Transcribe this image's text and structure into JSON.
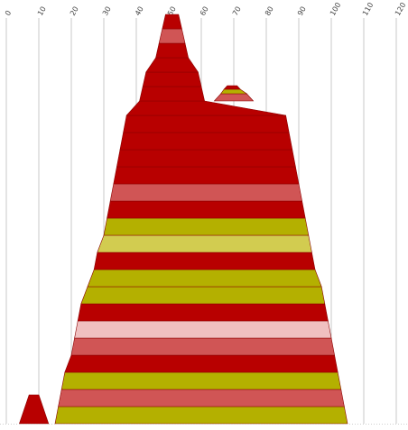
{
  "chart_data": {
    "type": "area",
    "title": "",
    "xlabel": "",
    "ylabel": "",
    "xlim": [
      0,
      120
    ],
    "x_ticks": [
      "0",
      "10",
      "20",
      "30",
      "40",
      "50",
      "60",
      "70",
      "80",
      "90",
      "100",
      "110",
      "120"
    ],
    "grid": "vertical",
    "legend": "none",
    "colors": {
      "dark_red": "#b80000",
      "salmon": "#d05555",
      "pink": "#f0c0c0",
      "olive": "#b4b000",
      "light_olive": "#d2cc50"
    },
    "bands": [
      {
        "x_bottom": [
          15,
          105
        ],
        "x_top": [
          16,
          104
        ],
        "color": "olive"
      },
      {
        "x_bottom": [
          16,
          104
        ],
        "x_top": [
          17,
          103
        ],
        "color": "salmon"
      },
      {
        "x_bottom": [
          17,
          103
        ],
        "x_top": [
          18,
          102
        ],
        "color": "olive"
      },
      {
        "x_bottom": [
          18,
          102
        ],
        "x_top": [
          20,
          101
        ],
        "color": "dark_red"
      },
      {
        "x_bottom": [
          20,
          101
        ],
        "x_top": [
          21,
          100
        ],
        "color": "salmon"
      },
      {
        "x_bottom": [
          21,
          100
        ],
        "x_top": [
          22,
          99
        ],
        "color": "pink"
      },
      {
        "x_bottom": [
          22,
          99
        ],
        "x_top": [
          23,
          98
        ],
        "color": "dark_red"
      },
      {
        "x_bottom": [
          23,
          98
        ],
        "x_top": [
          25,
          97
        ],
        "color": "olive"
      },
      {
        "x_bottom": [
          25,
          97
        ],
        "x_top": [
          27,
          95
        ],
        "color": "olive"
      },
      {
        "x_bottom": [
          27,
          95
        ],
        "x_top": [
          28,
          94
        ],
        "color": "dark_red"
      },
      {
        "x_bottom": [
          28,
          94
        ],
        "x_top": [
          30,
          93
        ],
        "color": "light_olive"
      },
      {
        "x_bottom": [
          30,
          93
        ],
        "x_top": [
          31,
          92
        ],
        "color": "olive"
      },
      {
        "x_bottom": [
          31,
          92
        ],
        "x_top": [
          32,
          91
        ],
        "color": "dark_red"
      },
      {
        "x_bottom": [
          32,
          91
        ],
        "x_top": [
          33,
          90
        ],
        "color": "salmon"
      },
      {
        "x_bottom": [
          33,
          90
        ],
        "x_top": [
          34,
          89
        ],
        "color": "dark_red"
      },
      {
        "x_bottom": [
          34,
          89
        ],
        "x_top": [
          35,
          88
        ],
        "color": "dark_red"
      },
      {
        "x_bottom": [
          35,
          88
        ],
        "x_top": [
          36,
          87
        ],
        "color": "dark_red"
      },
      {
        "x_bottom": [
          36,
          87
        ],
        "x_top": [
          37,
          86
        ],
        "color": "dark_red"
      },
      {
        "x_bottom": [
          37,
          86
        ],
        "x_top": [
          41,
          61
        ],
        "x_top2": [
          64,
          76
        ],
        "color": "dark_red"
      },
      {
        "x_bottom": [
          41,
          61
        ],
        "x_top": [
          42,
          60
        ],
        "color": "dark_red"
      },
      {
        "x_bottom": [
          42,
          60
        ],
        "x_top": [
          43,
          59
        ],
        "color": "dark_red"
      },
      {
        "x_bottom": [
          43,
          59
        ],
        "x_top": [
          46,
          56
        ],
        "color": "dark_red"
      },
      {
        "x_bottom": [
          46,
          56
        ],
        "x_top": [
          47,
          55
        ],
        "color": "dark_red"
      },
      {
        "x_bottom": [
          47,
          55
        ],
        "x_top": [
          48,
          54
        ],
        "color": "salmon"
      },
      {
        "x_bottom": [
          48,
          54
        ],
        "x_top": [
          49,
          53
        ],
        "color": "dark_red"
      }
    ],
    "side_peak": [
      {
        "x_bottom": [
          64,
          76
        ],
        "x_top": [
          66,
          74
        ],
        "color": "salmon"
      },
      {
        "x_bottom": [
          66,
          74
        ],
        "x_top": [
          67,
          72
        ],
        "color": "olive"
      },
      {
        "x_bottom": [
          67,
          72
        ],
        "x_top": [
          68,
          71
        ],
        "color": "dark_red"
      }
    ],
    "small_peak": {
      "x_bottom": [
        4,
        13
      ],
      "x_top": [
        7,
        10
      ],
      "color": "dark_red"
    }
  }
}
